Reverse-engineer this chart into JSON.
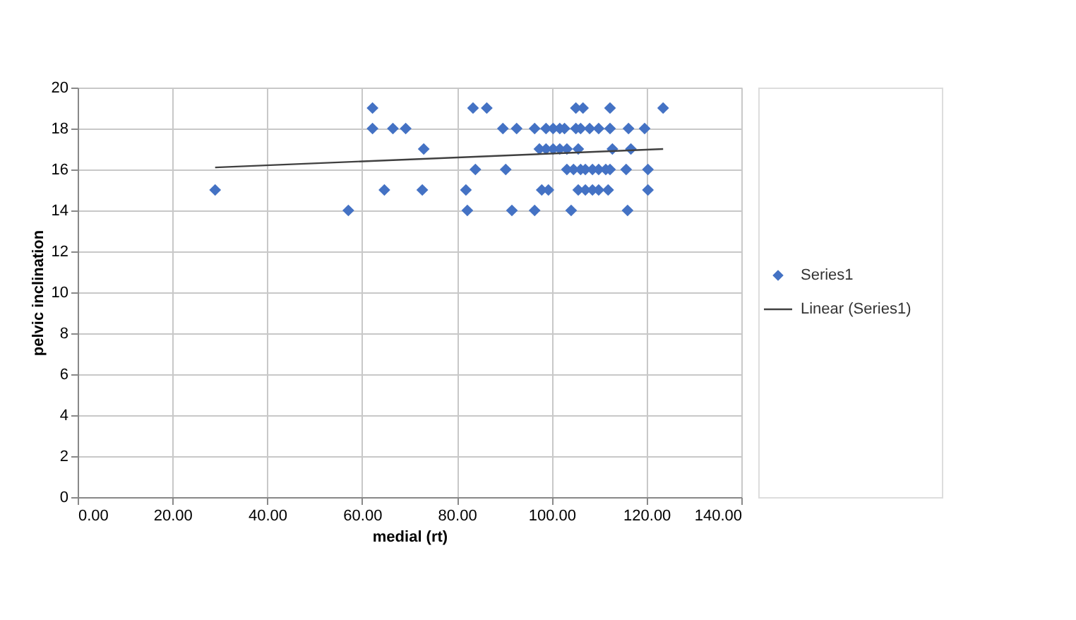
{
  "chart_data": {
    "type": "scatter",
    "xlabel": "medial (rt)",
    "ylabel": "pelvic inclination",
    "series": [
      {
        "name": "Series1",
        "color": "#4472c4",
        "marker": "diamond",
        "x": [
          29,
          57.1,
          62.2,
          62.2,
          66.5,
          69.2,
          73,
          64.7,
          72.7,
          83.4,
          86.3,
          105.1,
          106.6,
          112.3,
          123.5,
          89.7,
          92.6,
          96.4,
          98.8,
          100.3,
          101.7,
          102.7,
          105.1,
          106.1,
          108,
          109.9,
          112.3,
          116.2,
          119.6,
          97.4,
          98.8,
          100.3,
          101.7,
          103.2,
          105.6,
          112.8,
          116.7,
          83.9,
          90.3,
          103.2,
          104.6,
          106.1,
          107.1,
          108.6,
          109.9,
          111.4,
          112.3,
          115.7,
          120.3,
          81.9,
          97.9,
          99.3,
          105.6,
          107.1,
          108.6,
          109.9,
          111.9,
          120.3,
          82.2,
          91.6,
          96.4,
          104.1,
          116
        ],
        "values": [
          15,
          14,
          19,
          18,
          18,
          18,
          17,
          15,
          15,
          19,
          19,
          19,
          19,
          19,
          19,
          18,
          18,
          18,
          18,
          18,
          18,
          18,
          18,
          18,
          18,
          18,
          18,
          18,
          18,
          17,
          17,
          17,
          17,
          17,
          17,
          17,
          17,
          16,
          16,
          16,
          16,
          16,
          16,
          16,
          16,
          16,
          16,
          16,
          16,
          15,
          15,
          15,
          15,
          15,
          15,
          15,
          15,
          15,
          14,
          14,
          14,
          14,
          14
        ]
      },
      {
        "name": "Linear (Series1)",
        "type": "line",
        "color": "#404040",
        "marker": "none",
        "line_style": "solid",
        "x": [
          29,
          123.5
        ],
        "values": [
          16.1,
          17.0
        ]
      }
    ],
    "xlim": [
      0,
      140
    ],
    "xticks": [
      {
        "value": 0,
        "label": "0.00"
      },
      {
        "value": 20,
        "label": "20.00"
      },
      {
        "value": 40,
        "label": "40.00"
      },
      {
        "value": 60,
        "label": "60.00"
      },
      {
        "value": 80,
        "label": "80.00"
      },
      {
        "value": 100,
        "label": "100.00"
      },
      {
        "value": 120,
        "label": "120.00"
      },
      {
        "value": 140,
        "label": "140.00"
      }
    ],
    "ylim": [
      0,
      20
    ],
    "yticks": [
      0,
      2,
      4,
      6,
      8,
      10,
      12,
      14,
      16,
      18,
      20
    ],
    "grid": true,
    "legend": "right"
  }
}
